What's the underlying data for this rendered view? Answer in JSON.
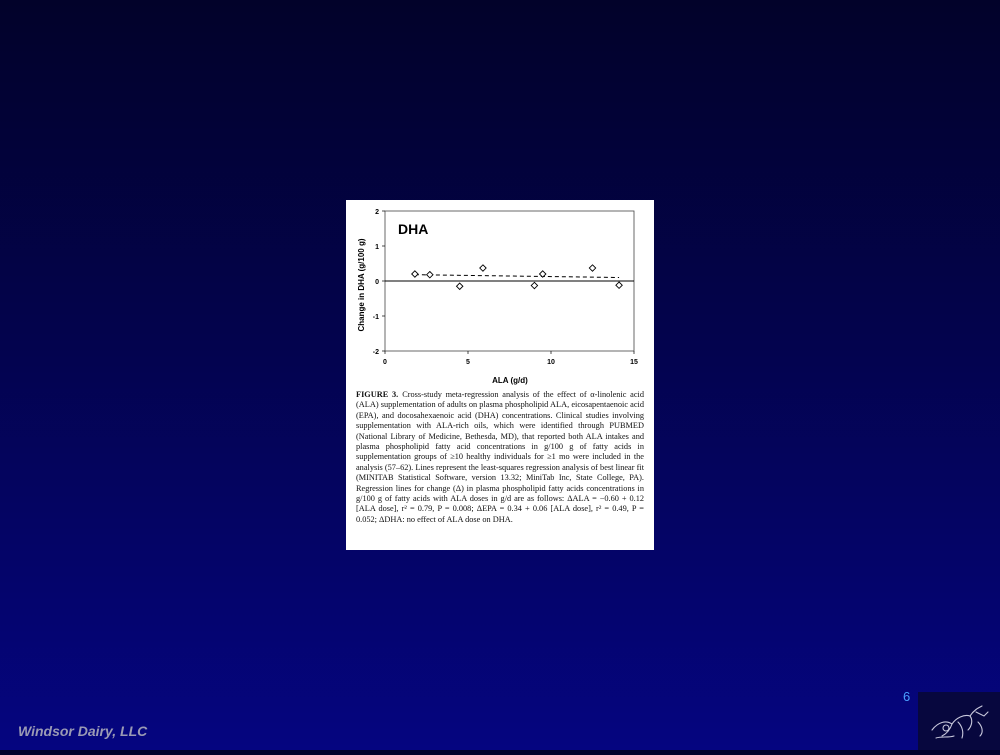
{
  "slide": {
    "page_number": "6",
    "footer_brand": "Windsor Dairy, LLC"
  },
  "caption": {
    "label": "FIGURE 3.",
    "text": "Cross-study meta-regression analysis of the effect of α-linolenic acid (ALA) supplementation of adults on plasma phospholipid ALA, eicosapentaenoic acid (EPA), and docosahexaenoic acid (DHA) concentrations. Clinical studies involving supplementation with ALA-rich oils, which were identified through PUBMED (National Library of Medicine, Bethesda, MD), that reported both ALA intakes and plasma phospholipid fatty acid concentrations in g/100 g of fatty acids in supplementation groups of ≥10 healthy individuals for ≥1 mo were included in the analysis (57–62). Lines represent the least-squares regression analysis of best linear fit (MINITAB Statistical Software, version 13.32; MiniTab Inc, State College, PA). Regression lines for change (Δ) in plasma phospholipid fatty acids concentrations in g/100 g of fatty acids with ALA doses in g/d are as follows: ΔALA = −0.60 + 0.12 [ALA dose], r² = 0.79, P = 0.008; ΔEPA = 0.34 + 0.06 [ALA dose], r² = 0.49, P = 0.052; ΔDHA: no effect of ALA dose on DHA."
  },
  "chart_data": {
    "type": "scatter",
    "title": "DHA",
    "xlabel": "ALA (g/d)",
    "ylabel": "Change in DHA (g/100 g)",
    "xlim": [
      0,
      15
    ],
    "ylim": [
      -2,
      2
    ],
    "x_ticks": [
      0,
      5,
      10,
      15
    ],
    "y_ticks": [
      2,
      1,
      0,
      -1,
      -2
    ],
    "grid": false,
    "series": [
      {
        "marker": "diamond-open",
        "points": [
          {
            "x": 1.8,
            "y": 0.2
          },
          {
            "x": 2.7,
            "y": 0.18
          },
          {
            "x": 4.5,
            "y": -0.15
          },
          {
            "x": 5.9,
            "y": 0.37
          },
          {
            "x": 9.0,
            "y": -0.13
          },
          {
            "x": 9.5,
            "y": 0.2
          },
          {
            "x": 12.5,
            "y": 0.37
          },
          {
            "x": 14.1,
            "y": -0.12
          }
        ]
      }
    ],
    "fit_line": {
      "style": "dashed",
      "points": [
        {
          "x": 1.8,
          "y": 0.18
        },
        {
          "x": 14.1,
          "y": 0.1
        }
      ]
    },
    "zero_line": true
  }
}
